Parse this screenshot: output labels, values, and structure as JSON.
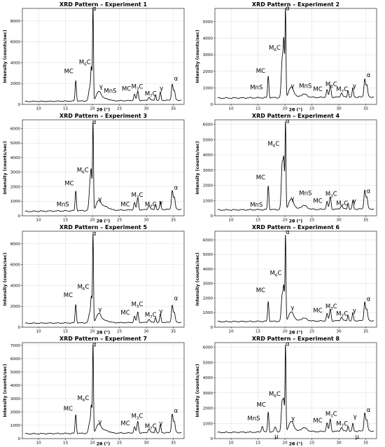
{
  "xlabel": "2θ (°)",
  "ylabel": "Intensity (counts/sec)",
  "chart_data": [
    {
      "type": "line",
      "title": "XRD Pattern – Experiment 1",
      "xlabel": "2θ (°)",
      "ylabel": "Intensity (counts/sec)",
      "xlim": [
        7,
        37
      ],
      "ylim": [
        0,
        9200
      ],
      "xticks": [
        10,
        15,
        20,
        25,
        30,
        35
      ],
      "yticks": [
        0,
        2000,
        4000,
        6000,
        8000
      ],
      "baseline": {
        "y0": 280,
        "y1": 400
      },
      "peaks": [
        [
          16.9,
          1950,
          0.12
        ],
        [
          19.5,
          1200,
          0.22
        ],
        [
          19.8,
          2800,
          0.12
        ],
        [
          20.1,
          8800,
          0.09
        ],
        [
          21.2,
          900,
          0.45
        ],
        [
          22.5,
          200,
          0.6
        ],
        [
          27.8,
          600,
          0.15
        ],
        [
          28.4,
          900,
          0.15
        ],
        [
          30.5,
          300,
          0.2
        ],
        [
          31.7,
          550,
          0.12
        ],
        [
          32.6,
          800,
          0.12
        ],
        [
          34.8,
          1550,
          0.15
        ],
        [
          35.2,
          900,
          0.15
        ]
      ],
      "annotations": [
        {
          "text": "α",
          "x": 20.35,
          "y": 9000
        },
        {
          "text": "M",
          "sub": "6",
          "rest": "C",
          "x": 18.6,
          "y": 3850
        },
        {
          "text": "MC",
          "x": 15.6,
          "y": 3000
        },
        {
          "text": "γ",
          "x": 21.6,
          "y": 1500
        },
        {
          "text": "MnS",
          "x": 23.3,
          "y": 1100
        },
        {
          "text": "MC",
          "x": 26.3,
          "y": 1300
        },
        {
          "text": "M",
          "sub": "3",
          "rest": "C",
          "x": 28.3,
          "y": 1500
        },
        {
          "text": "M",
          "sub": "7",
          "rest": "C",
          "x": 30.8,
          "y": 850
        },
        {
          "text": "γ",
          "x": 32.8,
          "y": 1350
        },
        {
          "text": "α",
          "x": 35.5,
          "y": 2300
        }
      ]
    },
    {
      "type": "line",
      "title": "XRD Pattern – Experiment 2",
      "xlabel": "2θ (°)",
      "ylabel": "Intensity (counts/sec)",
      "xlim": [
        7,
        37
      ],
      "ylim": [
        0,
        5800
      ],
      "xticks": [
        10,
        15,
        20,
        25,
        30,
        35
      ],
      "yticks": [
        0,
        1000,
        2000,
        3000,
        4000,
        5000
      ],
      "baseline": {
        "y0": 380,
        "y1": 450
      },
      "peaks": [
        [
          16.9,
          1300,
          0.12
        ],
        [
          19.5,
          2300,
          0.18
        ],
        [
          19.8,
          3000,
          0.12
        ],
        [
          20.1,
          5200,
          0.09
        ],
        [
          21.2,
          650,
          0.45
        ],
        [
          23.5,
          200,
          0.6
        ],
        [
          27.8,
          450,
          0.15
        ],
        [
          28.4,
          700,
          0.15
        ],
        [
          30.5,
          250,
          0.2
        ],
        [
          31.7,
          400,
          0.12
        ],
        [
          32.6,
          550,
          0.12
        ],
        [
          34.8,
          1100,
          0.15
        ],
        [
          35.2,
          700,
          0.15
        ]
      ],
      "annotations": [
        {
          "text": "α",
          "x": 20.5,
          "y": 5700
        },
        {
          "text": "M",
          "sub": "6",
          "rest": "C",
          "x": 18.1,
          "y": 3300
        },
        {
          "text": "MC",
          "x": 15.5,
          "y": 1900
        },
        {
          "text": "MnS",
          "x": 14.7,
          "y": 900
        },
        {
          "text": "γ",
          "x": 21.4,
          "y": 1000
        },
        {
          "text": "MnS",
          "x": 23.8,
          "y": 1000
        },
        {
          "text": "MC",
          "x": 26.1,
          "y": 800
        },
        {
          "text": "M",
          "sub": "3",
          "rest": "C",
          "x": 28.6,
          "y": 1100
        },
        {
          "text": "M",
          "sub": "7",
          "rest": "C",
          "x": 30.6,
          "y": 800
        },
        {
          "text": "γ",
          "x": 32.9,
          "y": 1000
        },
        {
          "text": "α",
          "x": 35.5,
          "y": 1650
        }
      ]
    },
    {
      "type": "line",
      "title": "XRD Pattern – Experiment 3",
      "xlabel": "2θ (°)",
      "ylabel": "Intensity (counts/sec)",
      "xlim": [
        7,
        37
      ],
      "ylim": [
        0,
        6600
      ],
      "xticks": [
        10,
        15,
        20,
        25,
        30,
        35
      ],
      "yticks": [
        0,
        1000,
        2000,
        3000,
        4000,
        5000,
        6000
      ],
      "baseline": {
        "y0": 300,
        "y1": 450
      },
      "peaks": [
        [
          16.9,
          1350,
          0.12
        ],
        [
          19.6,
          2000,
          0.2
        ],
        [
          19.8,
          1500,
          0.12
        ],
        [
          20.1,
          5900,
          0.09
        ],
        [
          21.2,
          700,
          0.45
        ],
        [
          22.5,
          250,
          0.6
        ],
        [
          27.8,
          500,
          0.15
        ],
        [
          28.4,
          800,
          0.15
        ],
        [
          30.5,
          300,
          0.2
        ],
        [
          31.7,
          400,
          0.12
        ],
        [
          32.6,
          550,
          0.12
        ],
        [
          34.8,
          1300,
          0.15
        ],
        [
          35.2,
          800,
          0.15
        ]
      ],
      "annotations": [
        {
          "text": "α",
          "x": 20.35,
          "y": 6300
        },
        {
          "text": "M",
          "sub": "6",
          "rest": "C",
          "x": 18.2,
          "y": 3000
        },
        {
          "text": "MC",
          "x": 15.7,
          "y": 2100
        },
        {
          "text": "MnS",
          "x": 14.5,
          "y": 650
        },
        {
          "text": "γ",
          "x": 21.4,
          "y": 1000
        },
        {
          "text": "MC",
          "x": 26.1,
          "y": 650
        },
        {
          "text": "M",
          "sub": "3",
          "rest": "C",
          "x": 28.3,
          "y": 1300
        },
        {
          "text": "M",
          "sub": "7",
          "rest": "C",
          "x": 30.8,
          "y": 650
        },
        {
          "text": "γ",
          "x": 32.7,
          "y": 750
        },
        {
          "text": "α",
          "x": 35.5,
          "y": 1800
        }
      ]
    },
    {
      "type": "line",
      "title": "XRD Pattern – Experiment 4",
      "xlabel": "2θ (°)",
      "ylabel": "Intensity (counts/sec)",
      "xlim": [
        7,
        37
      ],
      "ylim": [
        0,
        6300
      ],
      "xticks": [
        10,
        15,
        20,
        25,
        30,
        35
      ],
      "yticks": [
        0,
        1000,
        2000,
        3000,
        4000,
        5000,
        6000
      ],
      "baseline": {
        "y0": 380,
        "y1": 450
      },
      "peaks": [
        [
          16.9,
          1550,
          0.12
        ],
        [
          19.5,
          3000,
          0.18
        ],
        [
          19.8,
          2600,
          0.12
        ],
        [
          20.1,
          5600,
          0.09
        ],
        [
          21.2,
          700,
          0.45
        ],
        [
          23.5,
          250,
          0.6
        ],
        [
          27.8,
          500,
          0.15
        ],
        [
          28.4,
          800,
          0.15
        ],
        [
          30.5,
          250,
          0.2
        ],
        [
          31.7,
          400,
          0.12
        ],
        [
          32.6,
          550,
          0.12
        ],
        [
          34.8,
          1250,
          0.15
        ],
        [
          35.2,
          750,
          0.15
        ]
      ],
      "annotations": [
        {
          "text": "α",
          "x": 20.5,
          "y": 6100
        },
        {
          "text": "M",
          "sub": "6",
          "rest": "C",
          "x": 17.9,
          "y": 4600
        },
        {
          "text": "MC",
          "x": 15.5,
          "y": 2400
        },
        {
          "text": "MnS",
          "x": 14.7,
          "y": 600
        },
        {
          "text": "γ",
          "x": 21.4,
          "y": 1000
        },
        {
          "text": "MnS",
          "x": 23.8,
          "y": 1350
        },
        {
          "text": "MC",
          "x": 26.1,
          "y": 850
        },
        {
          "text": "M",
          "sub": "3",
          "rest": "C",
          "x": 28.6,
          "y": 1300
        },
        {
          "text": "M",
          "sub": "7",
          "rest": "C",
          "x": 30.6,
          "y": 700
        },
        {
          "text": "γ",
          "x": 32.9,
          "y": 850
        },
        {
          "text": "α",
          "x": 35.5,
          "y": 1500
        }
      ]
    },
    {
      "type": "line",
      "title": "XRD Pattern – Experiment 5",
      "xlabel": "2θ (°)",
      "ylabel": "Intensity (counts/sec)",
      "xlim": [
        7,
        37
      ],
      "ylim": [
        0,
        9200
      ],
      "xticks": [
        10,
        15,
        20,
        25,
        30,
        35
      ],
      "yticks": [
        0,
        2000,
        4000,
        6000,
        8000
      ],
      "baseline": {
        "y0": 380,
        "y1": 470
      },
      "peaks": [
        [
          16.9,
          1750,
          0.12
        ],
        [
          19.5,
          900,
          0.22
        ],
        [
          19.8,
          2200,
          0.12
        ],
        [
          20.1,
          8300,
          0.09
        ],
        [
          21.2,
          900,
          0.45
        ],
        [
          22.5,
          200,
          0.6
        ],
        [
          27.8,
          600,
          0.15
        ],
        [
          28.4,
          1000,
          0.15
        ],
        [
          30.5,
          300,
          0.2
        ],
        [
          31.7,
          500,
          0.12
        ],
        [
          32.6,
          800,
          0.12
        ],
        [
          34.8,
          1650,
          0.15
        ],
        [
          35.2,
          900,
          0.15
        ]
      ],
      "annotations": [
        {
          "text": "α",
          "x": 20.35,
          "y": 8800
        },
        {
          "text": "M",
          "sub": "6",
          "rest": "C",
          "x": 18.3,
          "y": 3700
        },
        {
          "text": "MC",
          "x": 15.5,
          "y": 2900
        },
        {
          "text": "γ",
          "x": 21.4,
          "y": 1500
        },
        {
          "text": "MC",
          "x": 26.1,
          "y": 1200
        },
        {
          "text": "M",
          "sub": "3",
          "rest": "C",
          "x": 28.3,
          "y": 2000
        },
        {
          "text": "M",
          "sub": "7",
          "rest": "C",
          "x": 30.8,
          "y": 1000
        },
        {
          "text": "γ",
          "x": 32.7,
          "y": 1350
        },
        {
          "text": "α",
          "x": 35.5,
          "y": 2600
        }
      ]
    },
    {
      "type": "line",
      "title": "XRD Pattern – Experiment 6",
      "xlabel": "2θ (°)",
      "ylabel": "Intensity (counts/sec)",
      "xlim": [
        7,
        37
      ],
      "ylim": [
        0,
        6600
      ],
      "xticks": [
        10,
        15,
        20,
        25,
        30,
        35
      ],
      "yticks": [
        0,
        1000,
        2000,
        3000,
        4000,
        5000,
        6000
      ],
      "baseline": {
        "y0": 380,
        "y1": 450
      },
      "peaks": [
        [
          16.9,
          1350,
          0.12
        ],
        [
          19.5,
          1800,
          0.18
        ],
        [
          19.8,
          2000,
          0.12
        ],
        [
          20.1,
          5800,
          0.09
        ],
        [
          21.2,
          650,
          0.45
        ],
        [
          23.5,
          200,
          0.6
        ],
        [
          27.8,
          500,
          0.15
        ],
        [
          28.4,
          800,
          0.15
        ],
        [
          30.5,
          250,
          0.2
        ],
        [
          31.7,
          400,
          0.12
        ],
        [
          32.6,
          550,
          0.12
        ],
        [
          34.8,
          1300,
          0.15
        ],
        [
          35.2,
          750,
          0.15
        ]
      ],
      "annotations": [
        {
          "text": "α",
          "x": 20.5,
          "y": 6400
        },
        {
          "text": "M",
          "sub": "6",
          "rest": "C",
          "x": 18.3,
          "y": 3600
        },
        {
          "text": "MC",
          "x": 15.5,
          "y": 2400
        },
        {
          "text": "γ",
          "x": 21.4,
          "y": 1200
        },
        {
          "text": "MC",
          "x": 26.1,
          "y": 1000
        },
        {
          "text": "M",
          "sub": "3",
          "rest": "C",
          "x": 28.6,
          "y": 1300
        },
        {
          "text": "M",
          "sub": "7",
          "rest": "C",
          "x": 30.6,
          "y": 800
        },
        {
          "text": "γ",
          "x": 32.9,
          "y": 1000
        },
        {
          "text": "α",
          "x": 35.5,
          "y": 1800
        }
      ]
    },
    {
      "type": "line",
      "title": "XRD Pattern – Experiment 7",
      "xlabel": "2θ (°)",
      "ylabel": "Intensity (counts/sec)",
      "xlim": [
        7,
        37
      ],
      "ylim": [
        0,
        7200
      ],
      "xticks": [
        10,
        15,
        20,
        25,
        30,
        35
      ],
      "yticks": [
        0,
        1000,
        2000,
        3000,
        4000,
        5000,
        6000,
        7000
      ],
      "baseline": {
        "y0": 360,
        "y1": 450
      },
      "peaks": [
        [
          16.9,
          1400,
          0.12
        ],
        [
          19.5,
          800,
          0.22
        ],
        [
          19.8,
          1800,
          0.12
        ],
        [
          20.1,
          6500,
          0.09
        ],
        [
          21.2,
          700,
          0.45
        ],
        [
          22.5,
          200,
          0.6
        ],
        [
          27.8,
          450,
          0.15
        ],
        [
          28.4,
          850,
          0.15
        ],
        [
          30.5,
          300,
          0.2
        ],
        [
          31.7,
          350,
          0.12
        ],
        [
          32.6,
          600,
          0.12
        ],
        [
          34.8,
          1400,
          0.15
        ],
        [
          35.2,
          800,
          0.15
        ]
      ],
      "annotations": [
        {
          "text": "α",
          "x": 20.35,
          "y": 6900
        },
        {
          "text": "M",
          "sub": "6",
          "rest": "C",
          "x": 18.3,
          "y": 2900
        },
        {
          "text": "MC",
          "x": 15.5,
          "y": 2100
        },
        {
          "text": "γ",
          "x": 21.4,
          "y": 1100
        },
        {
          "text": "MC",
          "x": 26.1,
          "y": 1000
        },
        {
          "text": "M",
          "sub": "3",
          "rest": "C",
          "x": 28.3,
          "y": 1550
        },
        {
          "text": "M",
          "sub": "7",
          "rest": "C",
          "x": 30.8,
          "y": 800
        },
        {
          "text": "γ",
          "x": 32.7,
          "y": 1000
        },
        {
          "text": "α",
          "x": 35.5,
          "y": 1950
        }
      ]
    },
    {
      "type": "line",
      "title": "XRD Pattern – Experiment 8",
      "xlabel": "2θ (°)",
      "ylabel": "Intensity (counts/sec)",
      "xlim": [
        7,
        37
      ],
      "ylim": [
        0,
        6300
      ],
      "xticks": [
        10,
        15,
        20,
        25,
        30,
        35
      ],
      "yticks": [
        0,
        1000,
        2000,
        3000,
        4000,
        5000,
        6000
      ],
      "baseline": {
        "y0": 400,
        "y1": 500
      },
      "peaks": [
        [
          15.8,
          400,
          0.15
        ],
        [
          16.9,
          1300,
          0.12
        ],
        [
          18.2,
          300,
          0.2
        ],
        [
          19.5,
          2000,
          0.18
        ],
        [
          19.8,
          1600,
          0.12
        ],
        [
          20.1,
          5600,
          0.09
        ],
        [
          21.2,
          700,
          0.45
        ],
        [
          23.5,
          250,
          0.6
        ],
        [
          27.8,
          550,
          0.15
        ],
        [
          28.4,
          800,
          0.15
        ],
        [
          30.5,
          250,
          0.2
        ],
        [
          31.7,
          350,
          0.12
        ],
        [
          32.6,
          500,
          0.12
        ],
        [
          34.8,
          1200,
          0.15
        ],
        [
          35.2,
          700,
          0.15
        ]
      ],
      "annotations": [
        {
          "text": "α",
          "x": 20.5,
          "y": 6100
        },
        {
          "text": "M",
          "sub": "6",
          "rest": "C",
          "x": 18.1,
          "y": 2800
        },
        {
          "text": "MC",
          "x": 15.6,
          "y": 2100
        },
        {
          "text": "MnS",
          "x": 14.2,
          "y": 1200
        },
        {
          "text": "μ",
          "x": 18.4,
          "y": 20
        },
        {
          "text": "γ",
          "x": 21.5,
          "y": 1200
        },
        {
          "text": "MC",
          "x": 26.1,
          "y": 1050
        },
        {
          "text": "M",
          "sub": "3",
          "rest": "C",
          "x": 28.6,
          "y": 1500
        },
        {
          "text": "M",
          "sub": "7",
          "rest": "C",
          "x": 30.6,
          "y": 850
        },
        {
          "text": "γ",
          "x": 33.0,
          "y": 1300
        },
        {
          "text": "μ",
          "x": 33.4,
          "y": 0
        },
        {
          "text": "α",
          "x": 35.5,
          "y": 1750
        }
      ]
    }
  ]
}
